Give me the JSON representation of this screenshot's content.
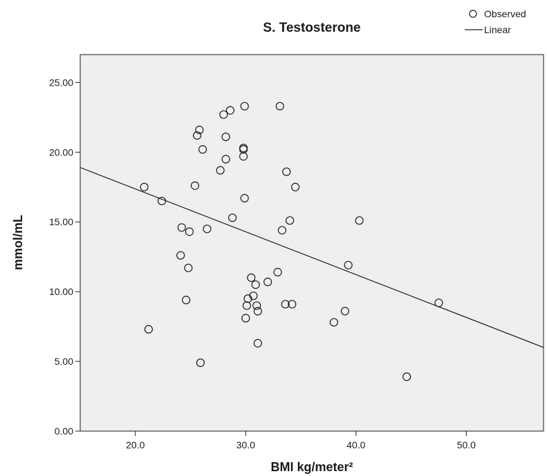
{
  "chart_data": {
    "type": "scatter",
    "title": "S. Testosterone",
    "xlabel": "BMI kg/meter²",
    "ylabel": "mmol/mL",
    "xlim": [
      15,
      57
    ],
    "ylim": [
      0,
      27
    ],
    "xticks": [
      20,
      30,
      40,
      50
    ],
    "xtick_labels": [
      "20.0",
      "30.0",
      "40.0",
      "50.0"
    ],
    "yticks": [
      0,
      5,
      10,
      15,
      20,
      25
    ],
    "ytick_labels": [
      "0.00",
      "5.00",
      "10.00",
      "15.00",
      "20.00",
      "25.00"
    ],
    "grid": false,
    "legend": {
      "position": "top-right",
      "entries": [
        {
          "label": "Observed",
          "marker": "circle"
        },
        {
          "label": "Linear",
          "marker": "line"
        }
      ]
    },
    "plot_background": "#efefef",
    "series": [
      {
        "name": "Observed",
        "kind": "scatter",
        "marker": "open-circle",
        "color": "#1a1a1a",
        "points": [
          [
            20.8,
            17.5
          ],
          [
            21.2,
            7.3
          ],
          [
            22.4,
            16.5
          ],
          [
            24.1,
            12.6
          ],
          [
            24.2,
            14.6
          ],
          [
            24.6,
            9.4
          ],
          [
            24.8,
            11.7
          ],
          [
            24.9,
            14.3
          ],
          [
            25.4,
            17.6
          ],
          [
            25.6,
            21.2
          ],
          [
            25.8,
            21.6
          ],
          [
            25.9,
            4.9
          ],
          [
            26.1,
            20.2
          ],
          [
            26.5,
            14.5
          ],
          [
            27.7,
            18.7
          ],
          [
            28.0,
            22.7
          ],
          [
            28.2,
            21.1
          ],
          [
            28.2,
            19.5
          ],
          [
            28.6,
            23.0
          ],
          [
            28.8,
            15.3
          ],
          [
            29.8,
            20.3
          ],
          [
            29.8,
            20.2
          ],
          [
            29.8,
            19.7
          ],
          [
            29.9,
            23.3
          ],
          [
            29.9,
            16.7
          ],
          [
            30.0,
            8.1
          ],
          [
            30.1,
            9.0
          ],
          [
            30.2,
            9.5
          ],
          [
            30.5,
            11.0
          ],
          [
            30.7,
            9.7
          ],
          [
            30.9,
            10.5
          ],
          [
            31.0,
            9.0
          ],
          [
            31.1,
            8.6
          ],
          [
            31.1,
            6.3
          ],
          [
            32.0,
            10.7
          ],
          [
            32.9,
            11.4
          ],
          [
            33.1,
            23.3
          ],
          [
            33.3,
            14.4
          ],
          [
            33.6,
            9.1
          ],
          [
            33.7,
            18.6
          ],
          [
            34.0,
            15.1
          ],
          [
            34.2,
            9.1
          ],
          [
            34.5,
            17.5
          ],
          [
            38.0,
            7.8
          ],
          [
            39.0,
            8.6
          ],
          [
            39.3,
            11.9
          ],
          [
            40.3,
            15.1
          ],
          [
            44.6,
            3.9
          ],
          [
            47.5,
            9.2
          ]
        ]
      },
      {
        "name": "Linear",
        "kind": "line",
        "color": "#1a1a1a",
        "points": [
          [
            15,
            18.9
          ],
          [
            57,
            6.0
          ]
        ]
      }
    ]
  }
}
